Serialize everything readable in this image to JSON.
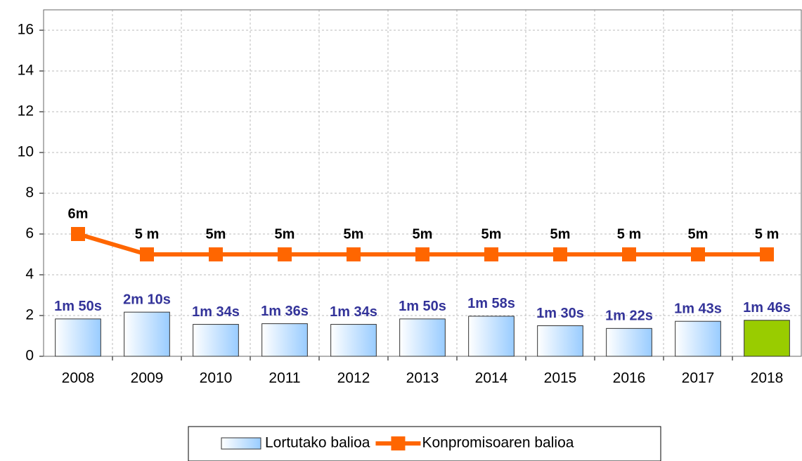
{
  "chart_data": {
    "type": "bar_line",
    "categories": [
      "2008",
      "2009",
      "2010",
      "2011",
      "2012",
      "2013",
      "2014",
      "2015",
      "2016",
      "2017",
      "2018"
    ],
    "series": [
      {
        "name": "Lortutako balioa",
        "type": "bar",
        "color": "#99ccff",
        "colors": [
          "#99ccff",
          "#99ccff",
          "#99ccff",
          "#99ccff",
          "#99ccff",
          "#99ccff",
          "#99ccff",
          "#99ccff",
          "#99ccff",
          "#99ccff",
          "#99cc00"
        ],
        "values": [
          1.833,
          2.167,
          1.567,
          1.6,
          1.567,
          1.833,
          1.967,
          1.5,
          1.367,
          1.717,
          1.767
        ],
        "value_labels": [
          "1m 50s",
          "2m 10s",
          "1m 34s",
          "1m 36s",
          "1m 34s",
          "1m 50s",
          "1m 58s",
          "1m 30s",
          "1m 22s",
          "1m 43s",
          "1m 46s"
        ]
      },
      {
        "name": "Konpromisoaren balioa",
        "type": "line",
        "color": "#ff6600",
        "values": [
          6,
          5,
          5,
          5,
          5,
          5,
          5,
          5,
          5,
          5,
          5
        ],
        "value_labels": [
          "6m",
          "5 m",
          "5m",
          "5m",
          "5m",
          "5m",
          "5m",
          "5m",
          "5 m",
          "5m",
          "5 m"
        ]
      }
    ],
    "ylim": [
      0,
      17
    ],
    "yticks": [
      0,
      2,
      4,
      6,
      8,
      10,
      12,
      14,
      16
    ],
    "grid": true,
    "legend": "bottom"
  }
}
